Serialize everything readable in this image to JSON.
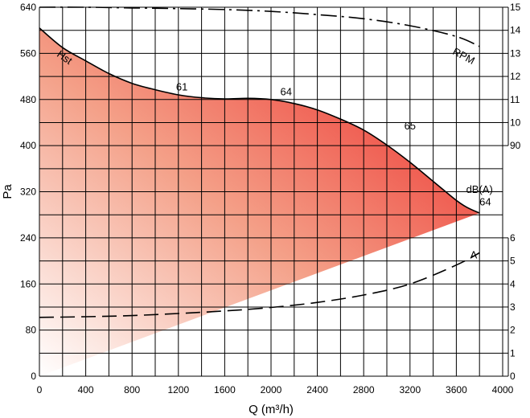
{
  "chart_data": {
    "type": "line",
    "title": "",
    "xlabel": "Q (m³/h)",
    "ylabel": "Pa",
    "xlim": [
      0,
      4000
    ],
    "ylim": [
      0,
      640
    ],
    "grid": true,
    "x_ticks": [
      "0",
      "400",
      "800",
      "1200",
      "1600",
      "2000",
      "2400",
      "2800",
      "3200",
      "3600",
      "4000"
    ],
    "y_ticks": [
      "0",
      "80",
      "160",
      "240",
      "320",
      "400",
      "480",
      "560",
      "640"
    ],
    "gradient_colors": [
      "#ffffff",
      "#f4a088",
      "#ec2020"
    ],
    "series": [
      {
        "name": "Hst",
        "style": "solid",
        "x": [
          0,
          200,
          400,
          600,
          800,
          1000,
          1200,
          1400,
          1600,
          1800,
          2000,
          2200,
          2400,
          2600,
          2800,
          3000,
          3200,
          3400,
          3600,
          3700,
          3800
        ],
        "y": [
          604,
          570,
          547,
          525,
          508,
          497,
          488,
          483,
          481,
          482,
          480,
          473,
          462,
          446,
          427,
          401,
          371,
          338,
          305,
          292,
          283
        ]
      },
      {
        "name": "RPM",
        "style": "dashdot",
        "right_scale": "rpm",
        "x": [
          0,
          400,
          800,
          1200,
          1600,
          2000,
          2400,
          2800,
          3200,
          3600,
          3800
        ],
        "y": [
          1500,
          1500,
          1497,
          1494,
          1490,
          1482,
          1468,
          1450,
          1420,
          1373,
          1330
        ]
      },
      {
        "name": "A",
        "style": "dashed",
        "right_scale": "current",
        "x": [
          0,
          400,
          800,
          1200,
          1600,
          2000,
          2400,
          2800,
          3200,
          3600,
          3800
        ],
        "y": [
          2.55,
          2.58,
          2.63,
          2.72,
          2.83,
          2.98,
          3.2,
          3.52,
          4.0,
          4.82,
          5.35
        ]
      }
    ],
    "right_axes": [
      {
        "id": "rpm",
        "ticks": [
          "90",
          "10",
          "11",
          "12",
          "13",
          "14",
          "15"
        ],
        "values": [
          900,
          1000,
          1100,
          1200,
          1300,
          1400,
          1500
        ],
        "pa_at_min": 400,
        "pa_at_max": 640
      },
      {
        "id": "current",
        "ticks": [
          "0",
          "1",
          "2",
          "3",
          "4",
          "5",
          "6"
        ],
        "values": [
          0,
          1,
          2,
          3,
          4,
          5,
          6
        ],
        "pa_at_min": 0,
        "pa_at_max": 240
      }
    ],
    "lower_boundary": {
      "x": [
        0,
        3800
      ],
      "y": [
        0,
        283
      ]
    },
    "annotations": [
      {
        "text": "61",
        "x": 1230,
        "y": 496
      },
      {
        "text": "64",
        "x": 2130,
        "y": 487
      },
      {
        "text": "65",
        "x": 3200,
        "y": 428
      },
      {
        "text": "dB(A)",
        "x": 3800,
        "y": 318
      },
      {
        "text": "64",
        "x": 3850,
        "y": 296
      },
      {
        "text": "Hst",
        "x": 200,
        "y": 548
      },
      {
        "text": "RPM",
        "x": 3650,
        "y": 550
      },
      {
        "text": "A",
        "x": 3750,
        "y": 204
      }
    ]
  }
}
